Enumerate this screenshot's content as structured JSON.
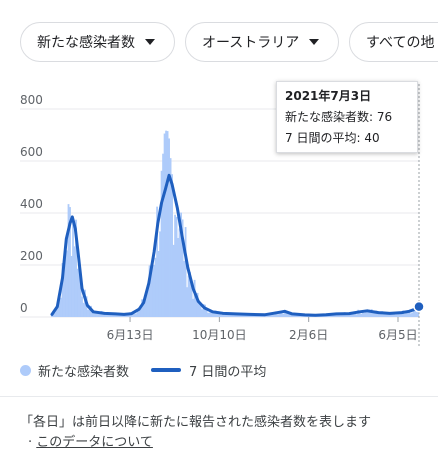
{
  "filters": {
    "metric": "新たな感染者数",
    "region": "オーストラリア",
    "scope": "すべての地"
  },
  "tooltip": {
    "date": "2021年7月3日",
    "new_cases_label": "新たな感染者数",
    "new_cases_value": "76",
    "avg_label": "7 日間の平均",
    "avg_value": "40"
  },
  "legend": {
    "bars": "新たな感染者数",
    "line": "7 日間の平均"
  },
  "footer": {
    "note": "「各日」は前日以降に新たに報告された感染者数を表します",
    "separator": "·",
    "about_link": "このデータについて"
  },
  "colors": {
    "bars": "#aecbfa",
    "line": "#1f5fbf",
    "grid": "#e8eaed",
    "axis_text": "#5f6368"
  },
  "chart_data": {
    "type": "bar",
    "title": "",
    "xlabel": "",
    "ylabel": "",
    "ylim": [
      0,
      800
    ],
    "y_ticks": [
      "0",
      "200",
      "400",
      "600",
      "800"
    ],
    "x_range": [
      "2020-03-01",
      "2021-07-03"
    ],
    "x_ticks": [
      {
        "date": "2020-06-13",
        "label": "6月13日"
      },
      {
        "date": "2020-10-10",
        "label": "10月10日"
      },
      {
        "date": "2021-02-06",
        "label": "2月6日"
      },
      {
        "date": "2021-06-05",
        "label": "6月5日"
      }
    ],
    "grid": true,
    "legend_position": "bottom",
    "series": [
      {
        "name": "7 日間の平均",
        "kind": "line",
        "points": [
          [
            "2020-03-01",
            10
          ],
          [
            "2020-03-08",
            40
          ],
          [
            "2020-03-15",
            150
          ],
          [
            "2020-03-20",
            300
          ],
          [
            "2020-03-25",
            360
          ],
          [
            "2020-03-28",
            385
          ],
          [
            "2020-04-01",
            340
          ],
          [
            "2020-04-05",
            240
          ],
          [
            "2020-04-10",
            110
          ],
          [
            "2020-04-17",
            45
          ],
          [
            "2020-04-25",
            20
          ],
          [
            "2020-05-10",
            14
          ],
          [
            "2020-05-25",
            12
          ],
          [
            "2020-06-05",
            10
          ],
          [
            "2020-06-15",
            13
          ],
          [
            "2020-06-25",
            30
          ],
          [
            "2020-07-01",
            55
          ],
          [
            "2020-07-08",
            130
          ],
          [
            "2020-07-15",
            250
          ],
          [
            "2020-07-20",
            360
          ],
          [
            "2020-07-25",
            440
          ],
          [
            "2020-07-30",
            490
          ],
          [
            "2020-08-04",
            545
          ],
          [
            "2020-08-08",
            510
          ],
          [
            "2020-08-15",
            420
          ],
          [
            "2020-08-22",
            300
          ],
          [
            "2020-08-29",
            190
          ],
          [
            "2020-09-05",
            110
          ],
          [
            "2020-09-12",
            60
          ],
          [
            "2020-09-20",
            35
          ],
          [
            "2020-10-01",
            20
          ],
          [
            "2020-10-15",
            14
          ],
          [
            "2020-11-01",
            12
          ],
          [
            "2020-11-20",
            10
          ],
          [
            "2020-12-10",
            9
          ],
          [
            "2020-12-25",
            16
          ],
          [
            "2021-01-05",
            22
          ],
          [
            "2021-01-15",
            12
          ],
          [
            "2021-02-01",
            8
          ],
          [
            "2021-02-15",
            7
          ],
          [
            "2021-03-01",
            9
          ],
          [
            "2021-03-15",
            12
          ],
          [
            "2021-04-01",
            13
          ],
          [
            "2021-04-15",
            20
          ],
          [
            "2021-04-25",
            24
          ],
          [
            "2021-05-10",
            17
          ],
          [
            "2021-05-25",
            14
          ],
          [
            "2021-06-10",
            17
          ],
          [
            "2021-06-20",
            22
          ],
          [
            "2021-06-28",
            30
          ],
          [
            "2021-07-03",
            40
          ]
        ]
      }
    ]
  }
}
